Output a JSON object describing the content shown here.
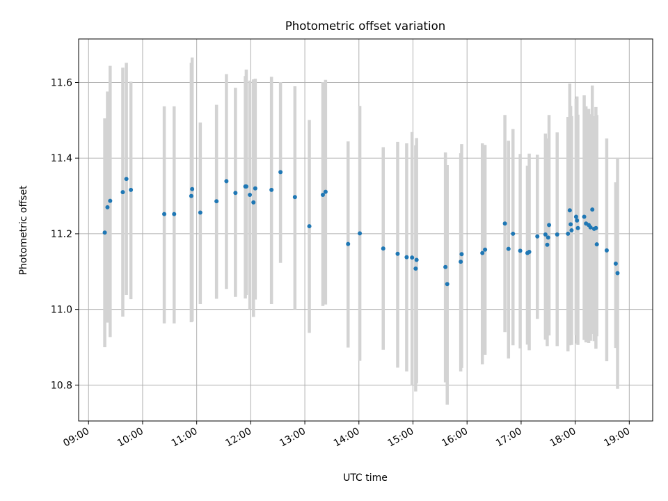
{
  "chart_data": {
    "type": "scatter",
    "title": "Photometric offset variation",
    "xlabel": "UTC time",
    "ylabel": "Photometric offset",
    "x_unit": "UTC clock time (hh:mm)",
    "xlim": [
      "08:49",
      "19:26"
    ],
    "ylim": [
      10.705,
      11.715
    ],
    "xticks": [
      "09:00",
      "10:00",
      "11:00",
      "12:00",
      "13:00",
      "14:00",
      "15:00",
      "16:00",
      "17:00",
      "18:00",
      "19:00"
    ],
    "yticks": [
      10.8,
      11.0,
      11.2,
      11.4,
      11.6
    ],
    "ytick_labels": [
      "10.8",
      "11.0",
      "11.2",
      "11.4",
      "11.6"
    ],
    "grid": true,
    "legend": "none",
    "colors": {
      "points": "#1f77b4",
      "error_bars": "#d3d3d3",
      "grid": "#b0b0b0"
    },
    "series": [
      {
        "x": [
          "09:18",
          "09:21",
          "09:24",
          "09:38",
          "09:42",
          "09:47",
          "10:24",
          "10:35",
          "10:54",
          "10:55",
          "11:04",
          "11:22",
          "11:33",
          "11:43",
          "11:54",
          "11:55",
          "11:59",
          "12:03",
          "12:05",
          "12:23",
          "12:33",
          "12:49",
          "13:05",
          "13:20",
          "13:23",
          "13:48",
          "14:01",
          "14:27",
          "14:43",
          "14:53",
          "14:59",
          "15:03",
          "15:04",
          "15:36",
          "15:38",
          "15:53",
          "15:54",
          "16:17",
          "16:20",
          "16:42",
          "16:46",
          "16:51",
          "16:59",
          "17:07",
          "17:09",
          "17:18",
          "17:27",
          "17:29",
          "17:30",
          "17:31",
          "17:40",
          "17:52",
          "17:54",
          "17:55",
          "17:56",
          "18:01",
          "18:02",
          "18:03",
          "18:10",
          "18:12",
          "18:15",
          "18:17",
          "18:19",
          "18:21",
          "18:23",
          "18:24",
          "18:35",
          "18:45",
          "18:47"
        ],
        "y": [
          11.203,
          11.27,
          11.287,
          11.31,
          11.345,
          11.316,
          11.252,
          11.252,
          11.3,
          11.318,
          11.256,
          11.286,
          11.339,
          11.308,
          11.325,
          11.325,
          11.303,
          11.283,
          11.32,
          11.316,
          11.363,
          11.297,
          11.22,
          11.303,
          11.311,
          11.173,
          11.201,
          11.161,
          11.147,
          11.138,
          11.137,
          11.108,
          11.131,
          11.112,
          11.067,
          11.126,
          11.146,
          11.149,
          11.158,
          11.227,
          11.16,
          11.2,
          11.155,
          11.149,
          11.152,
          11.193,
          11.198,
          11.171,
          11.19,
          11.223,
          11.198,
          11.2,
          11.262,
          11.225,
          11.209,
          11.245,
          11.235,
          11.215,
          11.245,
          11.227,
          11.223,
          11.217,
          11.264,
          11.213,
          11.215,
          11.172,
          11.156,
          11.121,
          11.096
        ],
        "err_low": [
          10.9,
          10.965,
          10.927,
          10.981,
          11.038,
          11.027,
          10.963,
          10.963,
          10.966,
          10.968,
          11.014,
          11.028,
          11.054,
          11.033,
          11.029,
          11.038,
          11.0,
          10.98,
          11.026,
          11.014,
          11.123,
          11.0,
          10.938,
          11.009,
          11.013,
          10.899,
          10.864,
          10.893,
          10.846,
          10.836,
          10.8,
          10.783,
          10.805,
          10.807,
          10.748,
          10.836,
          10.845,
          10.855,
          10.88,
          10.94,
          10.87,
          10.905,
          10.897,
          10.907,
          10.892,
          10.975,
          10.92,
          10.903,
          10.935,
          10.931,
          10.903,
          10.889,
          10.905,
          10.91,
          10.906,
          10.932,
          10.91,
          10.906,
          10.919,
          10.913,
          10.911,
          10.917,
          10.935,
          10.916,
          10.896,
          10.929,
          10.863,
          10.898,
          10.79
        ],
        "err_high": [
          11.505,
          11.576,
          11.644,
          11.639,
          11.652,
          11.602,
          11.537,
          11.537,
          11.652,
          11.666,
          11.494,
          11.541,
          11.622,
          11.586,
          11.617,
          11.634,
          11.605,
          11.608,
          11.61,
          11.615,
          11.601,
          11.59,
          11.501,
          11.601,
          11.607,
          11.444,
          11.538,
          11.429,
          11.443,
          11.439,
          11.469,
          11.434,
          11.453,
          11.415,
          11.382,
          11.413,
          11.437,
          11.439,
          11.435,
          11.514,
          11.446,
          11.477,
          11.411,
          11.38,
          11.412,
          11.409,
          11.465,
          11.442,
          11.452,
          11.514,
          11.468,
          11.509,
          11.597,
          11.538,
          11.511,
          11.557,
          11.563,
          11.515,
          11.566,
          11.537,
          11.53,
          11.516,
          11.592,
          11.511,
          11.535,
          11.514,
          11.452,
          11.336,
          11.401
        ]
      }
    ]
  }
}
